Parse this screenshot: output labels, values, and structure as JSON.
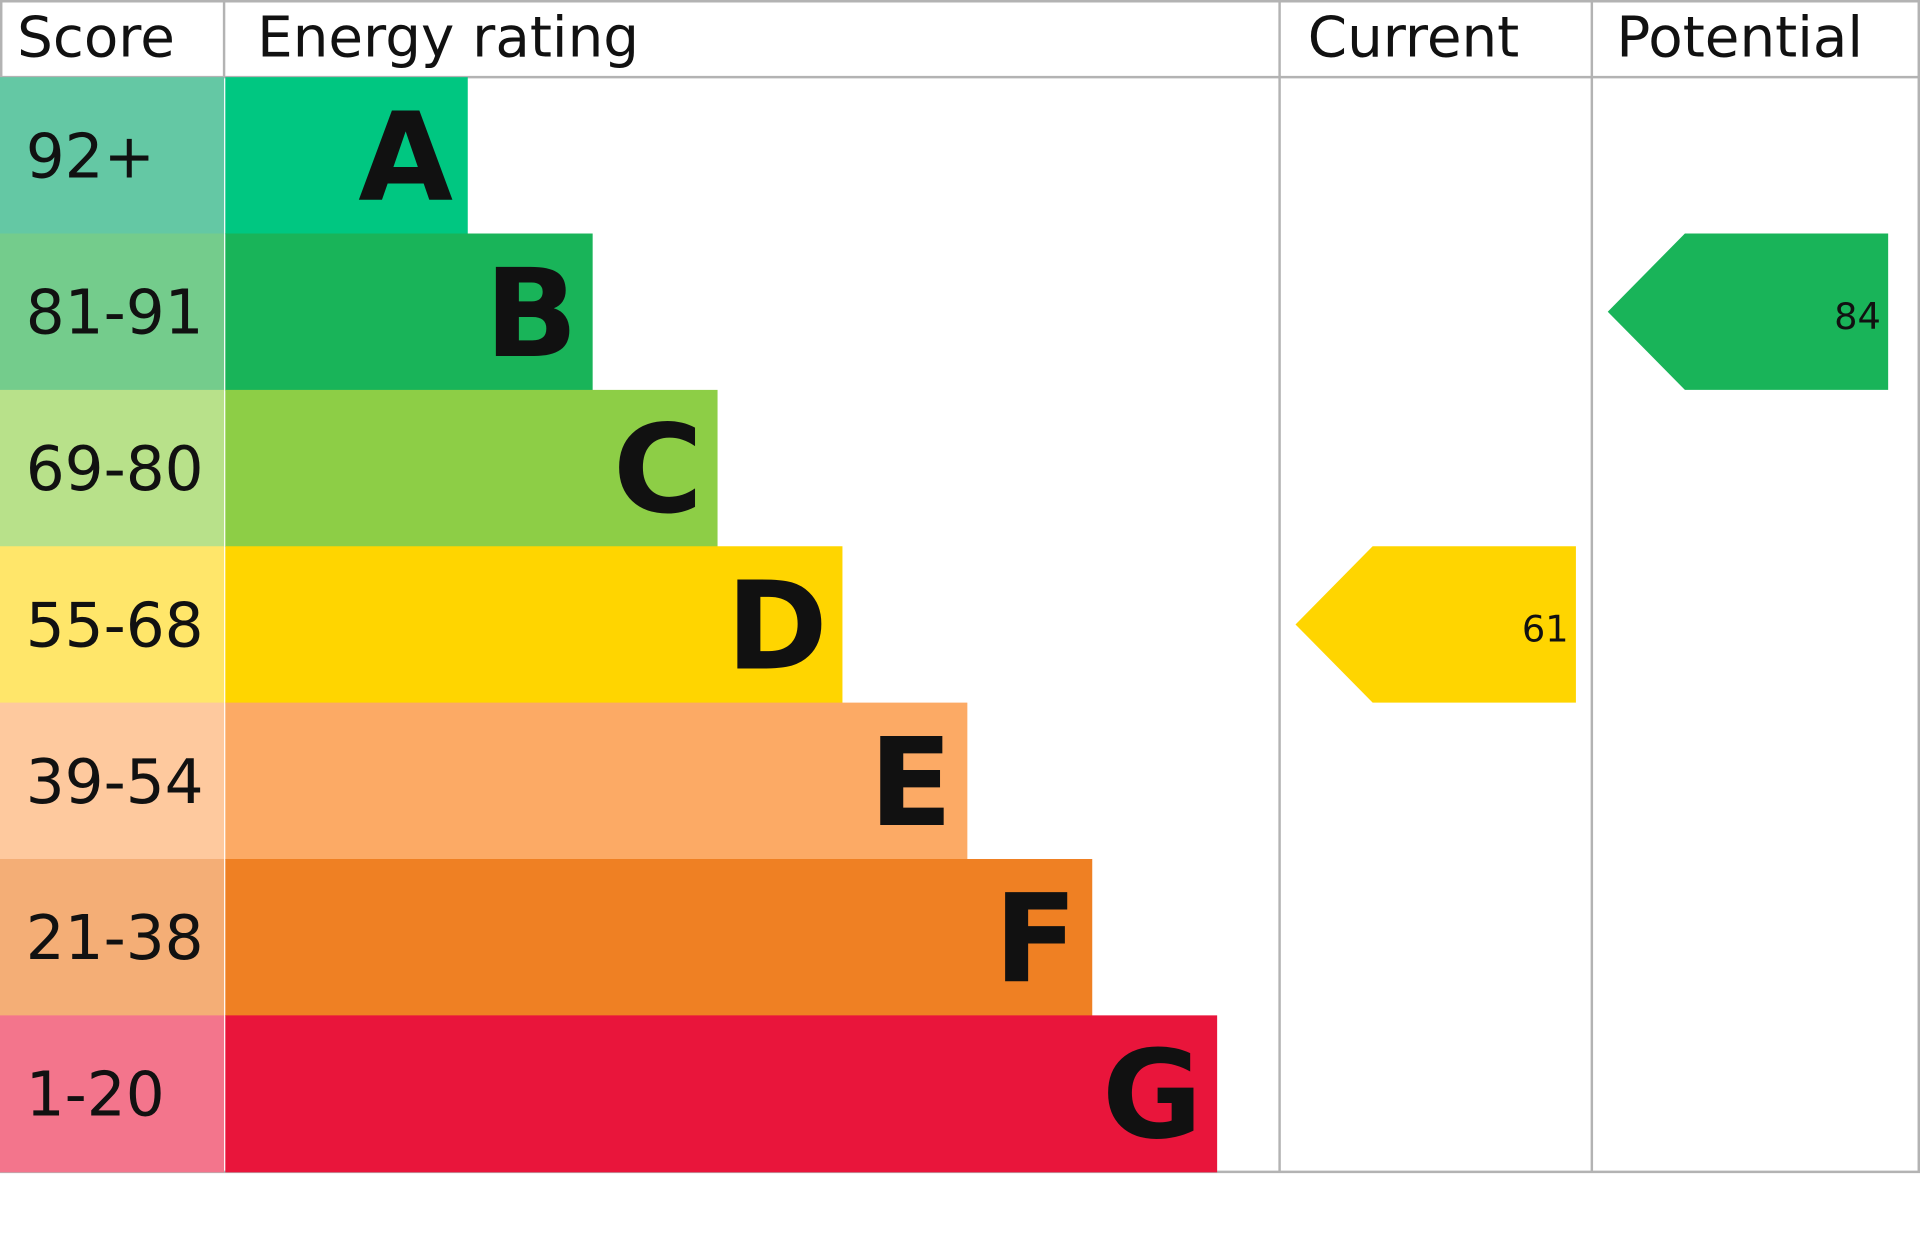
{
  "chart_data": {
    "type": "bar",
    "headers": {
      "score": "Score",
      "rating": "Energy rating",
      "current": "Current",
      "potential": "Potential"
    },
    "bands": [
      {
        "letter": "A",
        "range": "92+",
        "color": "#00c781",
        "score_color": "#64c8a4"
      },
      {
        "letter": "B",
        "range": "81-91",
        "color": "#19b459",
        "score_color": "#74cc8c"
      },
      {
        "letter": "C",
        "range": "69-80",
        "color": "#8dce46",
        "score_color": "#b8e18a"
      },
      {
        "letter": "D",
        "range": "55-68",
        "color": "#ffd500",
        "score_color": "#ffe66a"
      },
      {
        "letter": "E",
        "range": "39-54",
        "color": "#fcaa65",
        "score_color": "#fec99e"
      },
      {
        "letter": "F",
        "range": "21-38",
        "color": "#ef8023",
        "score_color": "#f4ae76"
      },
      {
        "letter": "G",
        "range": "1-20",
        "color": "#e9153b",
        "score_color": "#f3758c"
      }
    ],
    "current": {
      "value": "61",
      "band": "D",
      "color": "#ffd500"
    },
    "potential": {
      "value": "84",
      "band": "B",
      "color": "#19b459"
    }
  }
}
